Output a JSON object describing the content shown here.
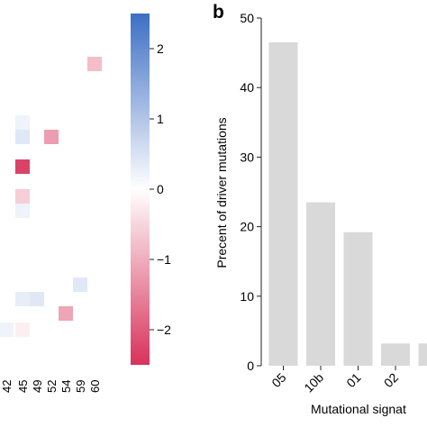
{
  "chart_data": [
    {
      "type": "heatmap",
      "x_tick_labels": [
        "42",
        "45",
        "49",
        "52",
        "54",
        "59",
        "60"
      ],
      "cells": [
        {
          "x": "60",
          "row": 1,
          "value": -0.8
        },
        {
          "x": "45",
          "row": 2,
          "value": 0.2
        },
        {
          "x": "45",
          "row": 3,
          "value": 0.4
        },
        {
          "x": "52",
          "row": 3,
          "value": -1.2
        },
        {
          "x": "45",
          "row": 4,
          "value": -2.3
        },
        {
          "x": "45",
          "row": 5,
          "value": -0.6
        },
        {
          "x": "45",
          "row": 6,
          "value": 0.2
        },
        {
          "x": "59",
          "row": 7,
          "value": 0.4
        },
        {
          "x": "45",
          "row": 8,
          "value": 0.3
        },
        {
          "x": "49",
          "row": 8,
          "value": 0.4
        },
        {
          "x": "54",
          "row": 9,
          "value": -1.1
        },
        {
          "x": "42",
          "row": 10,
          "value": 0.2
        },
        {
          "x": "45",
          "row": 10,
          "value": -0.2
        }
      ],
      "colorbar": {
        "ticks": [
          2,
          1,
          0,
          -1,
          -2
        ],
        "tick_labels": [
          "2",
          "1",
          "0",
          "−1",
          "−2"
        ],
        "range": [
          -2.5,
          2.5
        ],
        "colors": {
          "high": "#3c6fc4",
          "mid": "#ffffff",
          "low": "#d8325a"
        }
      }
    },
    {
      "panel_label": "b",
      "type": "bar",
      "categories": [
        "05",
        "10b",
        "01",
        "02",
        ""
      ],
      "values": [
        46.5,
        23.5,
        19.2,
        3.2,
        3.2
      ],
      "ylabel": "Precent of driver mutations",
      "xlabel": "Mutational signat",
      "ylim": [
        0,
        50
      ],
      "yticks": [
        0,
        10,
        20,
        30,
        40,
        50
      ],
      "bar_color": "#d9d9d9"
    }
  ]
}
